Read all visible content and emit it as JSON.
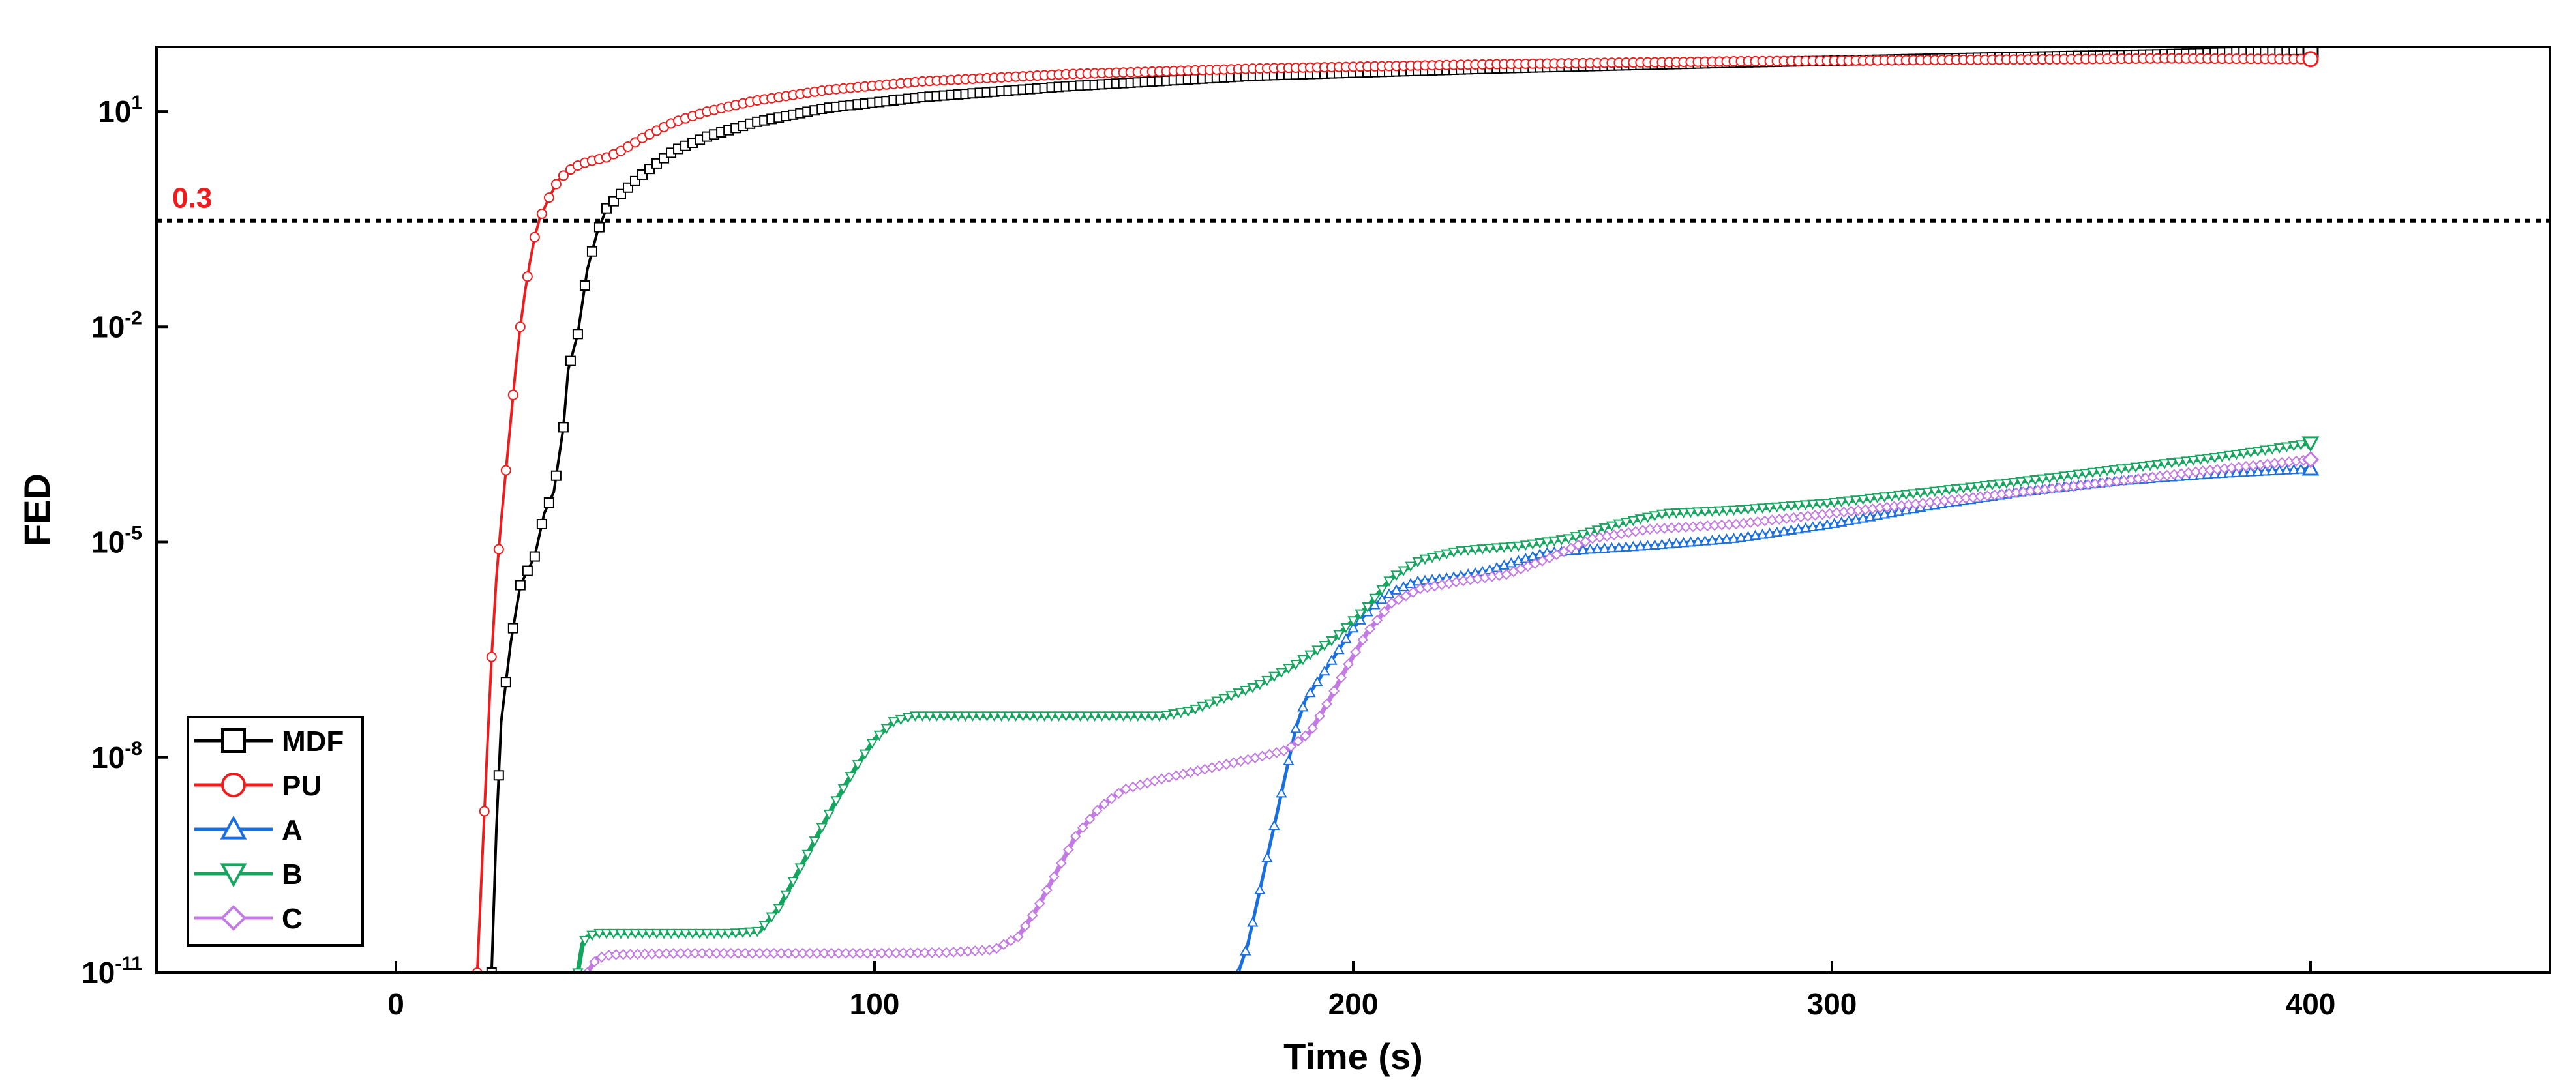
{
  "chart_data": {
    "type": "line",
    "title": "",
    "xlabel": "Time (s)",
    "ylabel": "FED",
    "xlim": [
      -50,
      450
    ],
    "ylim_log10": [
      -11,
      1.9
    ],
    "y_scale": "log",
    "x_ticks": [
      0,
      100,
      200,
      300,
      400
    ],
    "y_ticks": [
      {
        "exp": -11,
        "base": "10",
        "sup": "-11"
      },
      {
        "exp": -8,
        "base": "10",
        "sup": "-8"
      },
      {
        "exp": -5,
        "base": "10",
        "sup": "-5"
      },
      {
        "exp": -2,
        "base": "10",
        "sup": "-2"
      },
      {
        "exp": 1,
        "base": "10",
        "sup": "1"
      }
    ],
    "threshold": {
      "value": 0.3,
      "label": "0.3",
      "color": "#ee1c1c"
    },
    "legend_position": "bottom-left",
    "series": [
      {
        "name": "MDF",
        "color": "#000000",
        "marker": "square",
        "stroke_width": 4,
        "points": [
          [
            20,
            -11
          ],
          [
            21,
            -9
          ],
          [
            22,
            -7.5
          ],
          [
            24,
            -6.4
          ],
          [
            26,
            -5.6
          ],
          [
            29,
            -5.2
          ],
          [
            31,
            -4.6
          ],
          [
            33,
            -4.3
          ],
          [
            35,
            -3.4
          ],
          [
            36,
            -2.6
          ],
          [
            38,
            -2.1
          ],
          [
            40,
            -1.2
          ],
          [
            42,
            -0.7
          ],
          [
            44,
            -0.35
          ],
          [
            47,
            -0.15
          ],
          [
            52,
            0.15
          ],
          [
            58,
            0.45
          ],
          [
            65,
            0.65
          ],
          [
            75,
            0.85
          ],
          [
            90,
            1.05
          ],
          [
            110,
            1.2
          ],
          [
            140,
            1.35
          ],
          [
            180,
            1.5
          ],
          [
            230,
            1.6
          ],
          [
            280,
            1.68
          ],
          [
            330,
            1.75
          ],
          [
            370,
            1.8
          ],
          [
            400,
            1.86
          ]
        ]
      },
      {
        "name": "PU",
        "color": "#ee1c1c",
        "marker": "circle",
        "stroke_width": 4,
        "points": [
          [
            17,
            -11
          ],
          [
            18,
            -9.5
          ],
          [
            19,
            -8
          ],
          [
            20,
            -6.6
          ],
          [
            21,
            -5.5
          ],
          [
            22,
            -4.7
          ],
          [
            23,
            -4
          ],
          [
            24,
            -3.3
          ],
          [
            25,
            -2.6
          ],
          [
            26,
            -2
          ],
          [
            27,
            -1.5
          ],
          [
            28,
            -1.1
          ],
          [
            29,
            -0.75
          ],
          [
            30,
            -0.5
          ],
          [
            32,
            -0.2
          ],
          [
            34,
            0.05
          ],
          [
            37,
            0.22
          ],
          [
            40,
            0.3
          ],
          [
            44,
            0.36
          ],
          [
            47,
            0.45
          ],
          [
            52,
            0.65
          ],
          [
            58,
            0.85
          ],
          [
            65,
            1.0
          ],
          [
            75,
            1.15
          ],
          [
            90,
            1.3
          ],
          [
            110,
            1.42
          ],
          [
            140,
            1.52
          ],
          [
            180,
            1.6
          ],
          [
            230,
            1.66
          ],
          [
            280,
            1.7
          ],
          [
            330,
            1.72
          ],
          [
            370,
            1.74
          ],
          [
            400,
            1.73
          ]
        ]
      },
      {
        "name": "A",
        "color": "#1a6fe0",
        "marker": "triangle-up",
        "stroke_width": 5,
        "points": [
          [
            176,
            -11
          ],
          [
            178,
            -10.6
          ],
          [
            180,
            -10
          ],
          [
            182,
            -9.4
          ],
          [
            184,
            -8.8
          ],
          [
            186,
            -8.2
          ],
          [
            188,
            -7.6
          ],
          [
            190,
            -7.2
          ],
          [
            193,
            -6.9
          ],
          [
            197,
            -6.5
          ],
          [
            200,
            -6.2
          ],
          [
            204,
            -5.9
          ],
          [
            208,
            -5.7
          ],
          [
            213,
            -5.55
          ],
          [
            220,
            -5.5
          ],
          [
            228,
            -5.4
          ],
          [
            235,
            -5.25
          ],
          [
            240,
            -5.15
          ],
          [
            250,
            -5.1
          ],
          [
            262,
            -5.05
          ],
          [
            280,
            -4.95
          ],
          [
            300,
            -4.75
          ],
          [
            320,
            -4.5
          ],
          [
            340,
            -4.3
          ],
          [
            360,
            -4.15
          ],
          [
            380,
            -4.05
          ],
          [
            400,
            -3.98
          ]
        ]
      },
      {
        "name": "B",
        "color": "#14a55e",
        "marker": "triangle-down",
        "stroke_width": 7,
        "points": [
          [
            38,
            -11
          ],
          [
            39,
            -10.6
          ],
          [
            40,
            -10.5
          ],
          [
            42,
            -10.45
          ],
          [
            50,
            -10.45
          ],
          [
            60,
            -10.45
          ],
          [
            70,
            -10.45
          ],
          [
            76,
            -10.42
          ],
          [
            80,
            -10.1
          ],
          [
            84,
            -9.6
          ],
          [
            88,
            -9.1
          ],
          [
            92,
            -8.6
          ],
          [
            96,
            -8.15
          ],
          [
            100,
            -7.75
          ],
          [
            104,
            -7.5
          ],
          [
            108,
            -7.42
          ],
          [
            120,
            -7.42
          ],
          [
            140,
            -7.42
          ],
          [
            160,
            -7.42
          ],
          [
            166,
            -7.35
          ],
          [
            172,
            -7.2
          ],
          [
            180,
            -7
          ],
          [
            188,
            -6.7
          ],
          [
            196,
            -6.35
          ],
          [
            203,
            -5.9
          ],
          [
            208,
            -5.5
          ],
          [
            214,
            -5.25
          ],
          [
            222,
            -5.12
          ],
          [
            235,
            -5.05
          ],
          [
            245,
            -4.95
          ],
          [
            255,
            -4.75
          ],
          [
            265,
            -4.6
          ],
          [
            280,
            -4.55
          ],
          [
            300,
            -4.45
          ],
          [
            320,
            -4.3
          ],
          [
            340,
            -4.15
          ],
          [
            360,
            -3.98
          ],
          [
            380,
            -3.82
          ],
          [
            400,
            -3.62
          ]
        ]
      },
      {
        "name": "C",
        "color": "#c37be3",
        "marker": "diamond",
        "stroke_width": 7,
        "points": [
          [
            40,
            -11
          ],
          [
            42,
            -10.8
          ],
          [
            45,
            -10.75
          ],
          [
            60,
            -10.73
          ],
          [
            80,
            -10.73
          ],
          [
            100,
            -10.73
          ],
          [
            115,
            -10.72
          ],
          [
            125,
            -10.68
          ],
          [
            130,
            -10.5
          ],
          [
            134,
            -10.1
          ],
          [
            138,
            -9.6
          ],
          [
            142,
            -9.1
          ],
          [
            147,
            -8.7
          ],
          [
            152,
            -8.45
          ],
          [
            160,
            -8.3
          ],
          [
            170,
            -8.15
          ],
          [
            180,
            -8.0
          ],
          [
            186,
            -7.9
          ],
          [
            191,
            -7.65
          ],
          [
            195,
            -7.2
          ],
          [
            199,
            -6.7
          ],
          [
            203,
            -6.25
          ],
          [
            208,
            -5.85
          ],
          [
            214,
            -5.65
          ],
          [
            222,
            -5.55
          ],
          [
            232,
            -5.45
          ],
          [
            240,
            -5.25
          ],
          [
            250,
            -4.95
          ],
          [
            262,
            -4.82
          ],
          [
            280,
            -4.75
          ],
          [
            300,
            -4.6
          ],
          [
            320,
            -4.45
          ],
          [
            340,
            -4.3
          ],
          [
            360,
            -4.15
          ],
          [
            380,
            -3.99
          ],
          [
            400,
            -3.85
          ]
        ]
      }
    ]
  }
}
